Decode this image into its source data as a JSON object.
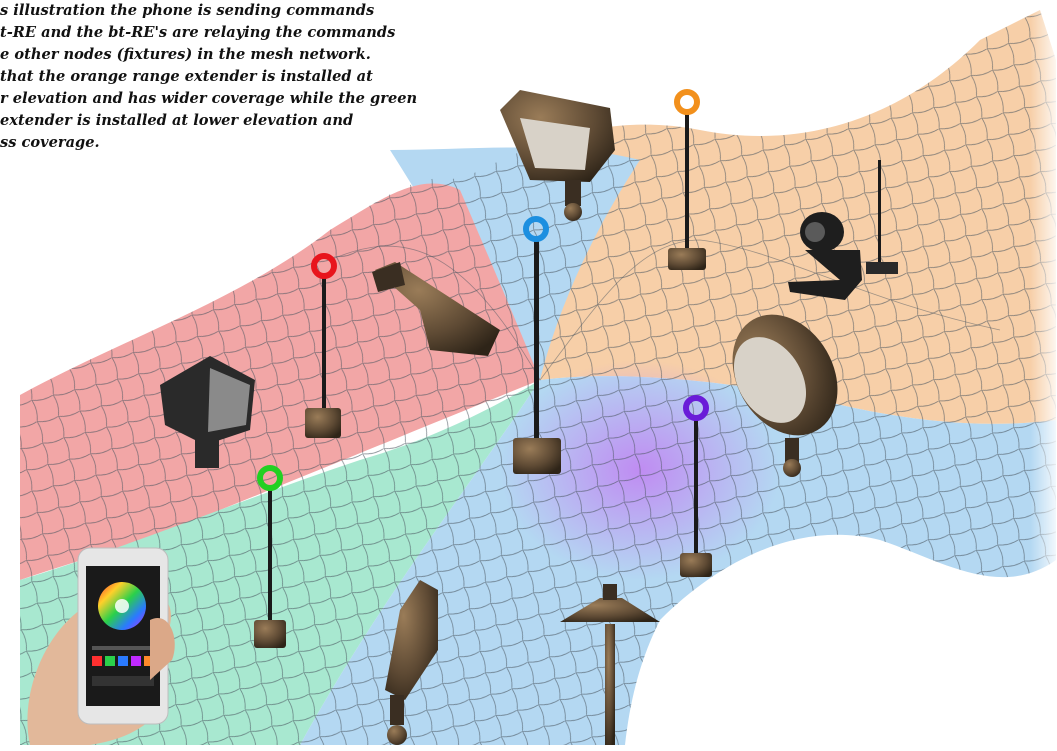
{
  "caption": {
    "lines": [
      "s illustration the phone is sending commands",
      "t-RE and the bt-RE's  are relaying the commands",
      "e other nodes (fixtures) in the mesh network.",
      "that the orange range extender is installed at",
      "r elevation and has wider coverage while the green",
      " extender is installed at lower elevation and",
      "ss coverage."
    ]
  },
  "colors": {
    "red_zone": "#f2a6a6",
    "green_zone": "#a8e8d0",
    "blue_zone": "#b4d8f2",
    "orange_zone": "#f7cfa8",
    "purple_zone": "#d6b0f2",
    "mesh_line": "#4a5560",
    "extender_red": "#e8141c",
    "extender_blue": "#1c8fe0",
    "extender_orange": "#f2901c",
    "extender_green": "#22d022",
    "extender_purple": "#6a1cd8",
    "fixture_bronze": "#5a4632"
  },
  "range_extenders": [
    {
      "color_name": "red"
    },
    {
      "color_name": "blue"
    },
    {
      "color_name": "orange"
    },
    {
      "color_name": "green"
    },
    {
      "color_name": "purple"
    }
  ],
  "phone": {
    "icon": "smartphone-color-wheel-app-icon"
  }
}
